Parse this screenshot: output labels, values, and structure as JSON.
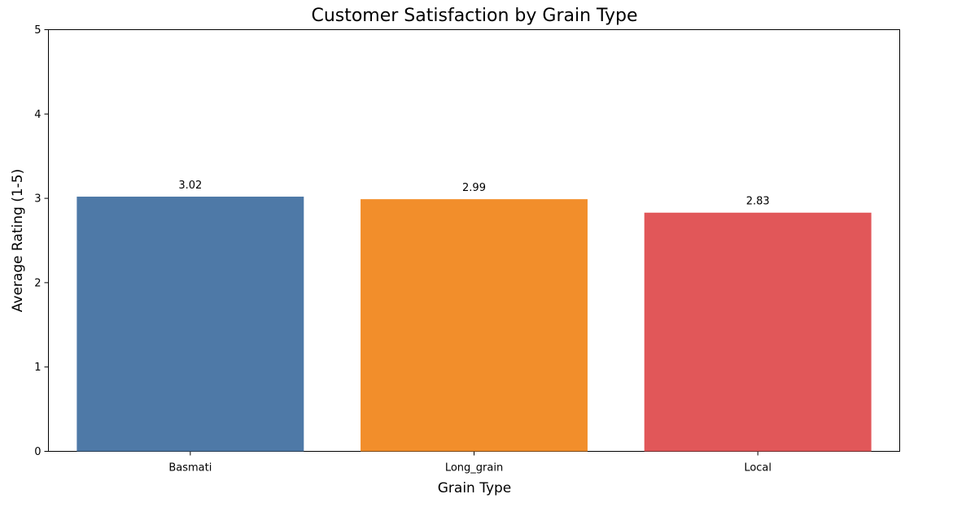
{
  "chart_data": {
    "type": "bar",
    "title": "Customer Satisfaction by Grain Type",
    "xlabel": "Grain Type",
    "ylabel": "Average Rating (1-5)",
    "categories": [
      "Basmati",
      "Long_grain",
      "Local"
    ],
    "values": [
      3.02,
      2.99,
      2.83
    ],
    "data_labels": [
      "3.02",
      "2.99",
      "2.83"
    ],
    "ylim": [
      0,
      5
    ],
    "yticks": [
      0,
      1,
      2,
      3,
      4,
      5
    ],
    "colors": [
      "#4e79a7",
      "#f28e2b",
      "#e15759"
    ],
    "grid": false,
    "legend": "none"
  }
}
